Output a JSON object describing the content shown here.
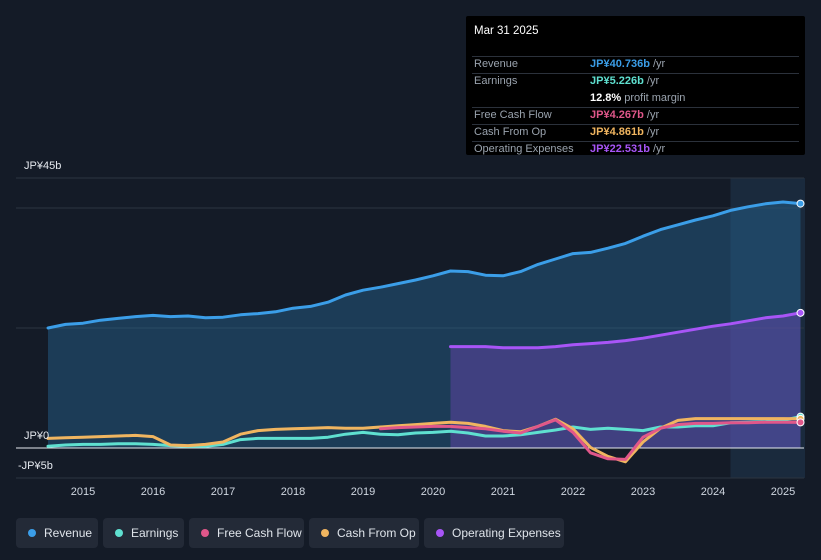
{
  "tooltip": {
    "date": "Mar 31 2025",
    "rows": [
      {
        "label": "Revenue",
        "value": "JP¥40.736b",
        "unit": " /yr",
        "color": "#3b9ee8"
      },
      {
        "label": "Earnings",
        "value": "JP¥5.226b",
        "unit": " /yr",
        "color": "#5fe0d0"
      },
      {
        "label": "",
        "value": "12.8%",
        "unit": " profit margin",
        "color": "#ffffff"
      },
      {
        "label": "Free Cash Flow",
        "value": "JP¥4.267b",
        "unit": " /yr",
        "color": "#e0578a"
      },
      {
        "label": "Cash From Op",
        "value": "JP¥4.861b",
        "unit": " /yr",
        "color": "#f0b560"
      },
      {
        "label": "Operating Expenses",
        "value": "JP¥22.531b",
        "unit": " /yr",
        "color": "#a855f7"
      }
    ]
  },
  "legend": [
    {
      "label": "Revenue",
      "color": "#3b9ee8"
    },
    {
      "label": "Earnings",
      "color": "#5fe0d0"
    },
    {
      "label": "Free Cash Flow",
      "color": "#e0578a"
    },
    {
      "label": "Cash From Op",
      "color": "#f0b560"
    },
    {
      "label": "Operating Expenses",
      "color": "#a855f7"
    }
  ],
  "chart_data": {
    "type": "line",
    "title": "",
    "xlabel": "",
    "ylabel": "",
    "ylim": [
      -5,
      45
    ],
    "y_tick_labels": [
      "JP¥45b",
      "JP¥0",
      "-JP¥5b"
    ],
    "x_tick_labels": [
      "2015",
      "2016",
      "2017",
      "2018",
      "2019",
      "2020",
      "2021",
      "2022",
      "2023",
      "2024",
      "2025"
    ],
    "xlim": [
      2014.5,
      2025.3
    ],
    "highlight_from": 2024.25,
    "series": [
      {
        "name": "Revenue",
        "color": "#3b9ee8",
        "fill": true,
        "x": [
          2014.5,
          2014.75,
          2015.0,
          2015.25,
          2015.5,
          2015.75,
          2016.0,
          2016.25,
          2016.5,
          2016.75,
          2017.0,
          2017.25,
          2017.5,
          2017.75,
          2018.0,
          2018.25,
          2018.5,
          2018.75,
          2019.0,
          2019.25,
          2019.5,
          2019.75,
          2020.0,
          2020.25,
          2020.5,
          2020.75,
          2021.0,
          2021.25,
          2021.5,
          2021.75,
          2022.0,
          2022.25,
          2022.5,
          2022.75,
          2023.0,
          2023.25,
          2023.5,
          2023.75,
          2024.0,
          2024.25,
          2024.5,
          2024.75,
          2025.0,
          2025.25
        ],
        "y": [
          20.0,
          20.6,
          20.8,
          21.3,
          21.6,
          21.9,
          22.1,
          21.9,
          22.0,
          21.7,
          21.8,
          22.2,
          22.4,
          22.7,
          23.3,
          23.6,
          24.3,
          25.5,
          26.3,
          26.8,
          27.4,
          28.0,
          28.7,
          29.5,
          29.4,
          28.8,
          28.7,
          29.4,
          30.6,
          31.5,
          32.4,
          32.6,
          33.3,
          34.1,
          35.3,
          36.4,
          37.2,
          38.0,
          38.7,
          39.6,
          40.2,
          40.7,
          41.0,
          40.736
        ]
      },
      {
        "name": "Operating Expenses",
        "color": "#a855f7",
        "fill": true,
        "x": [
          2020.25,
          2020.5,
          2020.75,
          2021.0,
          2021.25,
          2021.5,
          2021.75,
          2022.0,
          2022.25,
          2022.5,
          2022.75,
          2023.0,
          2023.25,
          2023.5,
          2023.75,
          2024.0,
          2024.25,
          2024.5,
          2024.75,
          2025.0,
          2025.25
        ],
        "y": [
          16.9,
          16.9,
          16.9,
          16.7,
          16.7,
          16.7,
          16.9,
          17.2,
          17.4,
          17.6,
          17.9,
          18.3,
          18.8,
          19.3,
          19.8,
          20.3,
          20.7,
          21.2,
          21.7,
          22.0,
          22.531
        ]
      },
      {
        "name": "Earnings",
        "color": "#5fe0d0",
        "fill": false,
        "x": [
          2014.5,
          2014.75,
          2015.0,
          2015.25,
          2015.5,
          2015.75,
          2016.0,
          2016.25,
          2016.5,
          2016.75,
          2017.0,
          2017.25,
          2017.5,
          2017.75,
          2018.0,
          2018.25,
          2018.5,
          2018.75,
          2019.0,
          2019.25,
          2019.5,
          2019.75,
          2020.0,
          2020.25,
          2020.5,
          2020.75,
          2021.0,
          2021.25,
          2021.5,
          2021.75,
          2022.0,
          2022.25,
          2022.5,
          2022.75,
          2023.0,
          2023.25,
          2023.5,
          2023.75,
          2024.0,
          2024.25,
          2024.5,
          2024.75,
          2025.0,
          2025.25
        ],
        "y": [
          0.3,
          0.5,
          0.6,
          0.6,
          0.7,
          0.7,
          0.6,
          0.4,
          0.3,
          0.3,
          0.6,
          1.4,
          1.6,
          1.6,
          1.6,
          1.6,
          1.8,
          2.3,
          2.6,
          2.3,
          2.2,
          2.5,
          2.6,
          2.8,
          2.5,
          2.0,
          2.0,
          2.2,
          2.6,
          3.0,
          3.5,
          3.1,
          3.3,
          3.1,
          2.9,
          3.5,
          3.5,
          3.7,
          3.7,
          4.2,
          4.3,
          4.4,
          4.6,
          5.226
        ]
      },
      {
        "name": "Free Cash Flow",
        "color": "#e0578a",
        "fill": false,
        "x": [
          2019.25,
          2019.5,
          2019.75,
          2020.0,
          2020.25,
          2020.5,
          2020.75,
          2021.0,
          2021.25,
          2021.5,
          2021.75,
          2022.0,
          2022.25,
          2022.5,
          2022.75,
          2023.0,
          2023.25,
          2023.5,
          2023.75,
          2024.0,
          2024.25,
          2024.5,
          2024.75,
          2025.0,
          2025.25
        ],
        "y": [
          3.2,
          3.4,
          3.5,
          3.6,
          3.6,
          3.4,
          3.2,
          2.8,
          2.5,
          3.6,
          4.7,
          2.6,
          -0.8,
          -1.8,
          -1.9,
          1.8,
          3.3,
          3.9,
          4.1,
          4.1,
          4.2,
          4.2,
          4.3,
          4.3,
          4.267
        ]
      },
      {
        "name": "Cash From Op",
        "color": "#f0b560",
        "fill": false,
        "x": [
          2014.5,
          2014.75,
          2015.0,
          2015.25,
          2015.5,
          2015.75,
          2016.0,
          2016.25,
          2016.5,
          2016.75,
          2017.0,
          2017.25,
          2017.5,
          2017.75,
          2018.0,
          2018.25,
          2018.5,
          2018.75,
          2019.0,
          2019.25,
          2019.5,
          2019.75,
          2020.0,
          2020.25,
          2020.5,
          2020.75,
          2021.0,
          2021.25,
          2021.5,
          2021.75,
          2022.0,
          2022.25,
          2022.5,
          2022.75,
          2023.0,
          2023.25,
          2023.5,
          2023.75,
          2024.0,
          2024.25,
          2024.5,
          2024.75,
          2025.0,
          2025.25
        ],
        "y": [
          1.6,
          1.7,
          1.8,
          1.9,
          2.0,
          2.1,
          1.9,
          0.5,
          0.4,
          0.6,
          1.0,
          2.3,
          2.9,
          3.1,
          3.2,
          3.3,
          3.4,
          3.3,
          3.3,
          3.5,
          3.7,
          3.9,
          4.1,
          4.3,
          4.1,
          3.6,
          2.9,
          2.7,
          3.6,
          4.8,
          3.2,
          0.1,
          -1.4,
          -2.3,
          1.0,
          3.3,
          4.6,
          4.9,
          4.9,
          4.9,
          4.9,
          4.9,
          4.9,
          4.861
        ]
      }
    ]
  }
}
